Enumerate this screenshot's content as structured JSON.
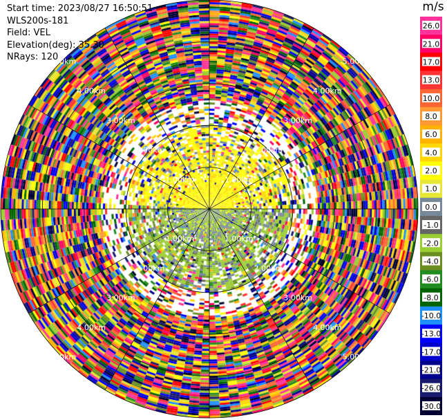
{
  "header": {
    "start_time": "Start time: 2023/08/27 16:50:51",
    "instrument": "WLS200s-181",
    "field": "Field: VEL",
    "elevation": "Elevation(deg): 35.30",
    "nrays": "NRays: 120"
  },
  "chart_data": {
    "type": "heatmap",
    "projection": "polar-ppi",
    "field": "VEL",
    "units": "m/s",
    "nrays": 120,
    "elevation_deg": 35.3,
    "max_range_km": 5.0,
    "range_ring_labels": [
      "1.00km",
      "2.00km",
      "3.00km",
      "4.00km",
      "5.00km"
    ],
    "range_rings_km": [
      1,
      2,
      3,
      4,
      5
    ],
    "colorbar": {
      "unit_label": "m/s",
      "ticks": [
        "26.0",
        "21.0",
        "17.0",
        "13.0",
        "10.0",
        "8.0",
        "6.0",
        "4.0",
        "2.0",
        "1.0",
        "0.0",
        "-1.0",
        "-2.0",
        "-4.0",
        "-6.0",
        "-8.0",
        "-10.0",
        "-13.0",
        "-17.0",
        "-21.0",
        "-26.0",
        "-30.0"
      ],
      "colors": [
        "#ff3399",
        "#ff0066",
        "#ff0000",
        "#ff3333",
        "#ff6633",
        "#ff9933",
        "#ffb300",
        "#ffd700",
        "#ffff00",
        "#e6e633",
        "#778899",
        "#666666",
        "#9acd32",
        "#6b8e23",
        "#228b22",
        "#006400",
        "#1e90ff",
        "#0000ff",
        "#0000cd",
        "#00008b",
        "#191970",
        "#000033"
      ]
    }
  }
}
